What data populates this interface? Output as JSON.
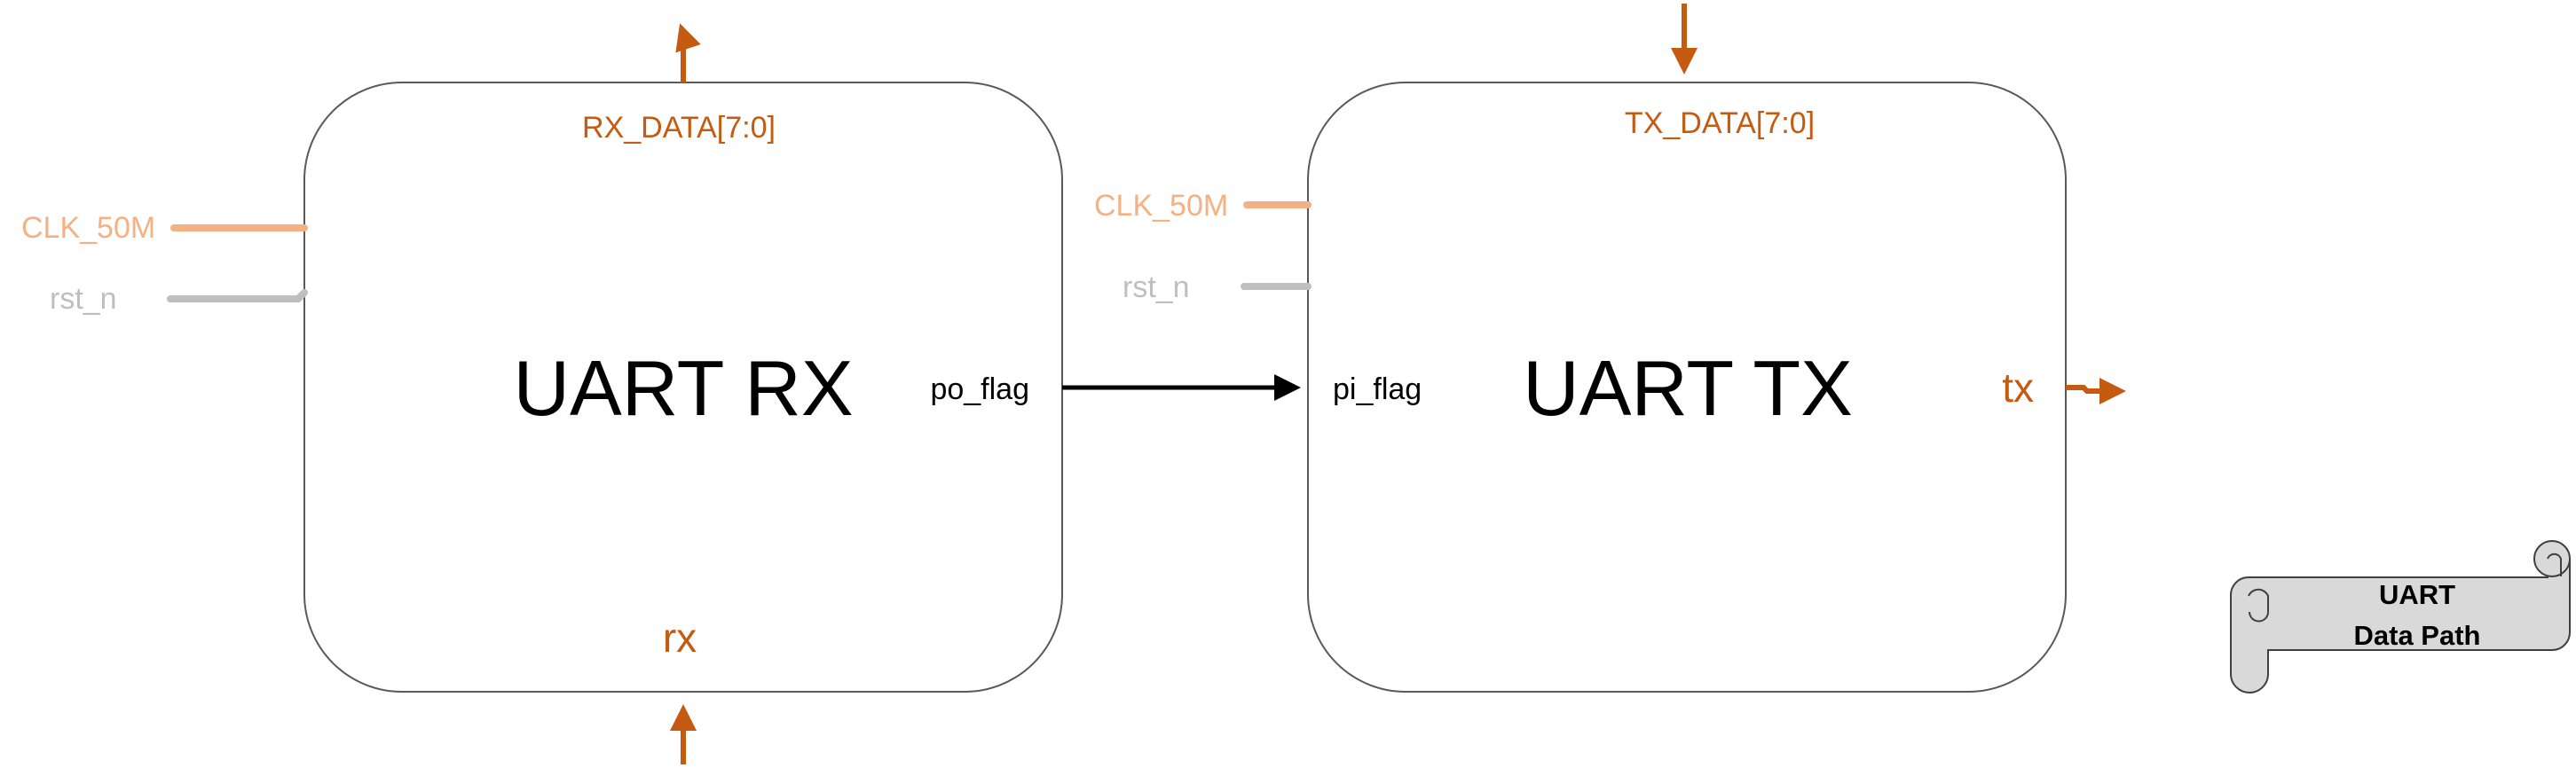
{
  "colors": {
    "signal": "#c55a11",
    "clock": "#f4b183",
    "reset": "#bfbfbf",
    "flag": "#000000",
    "block_border": "#595959",
    "scroll_fill": "#d9d9d9",
    "scroll_border": "#404040"
  },
  "blocks": {
    "rx": {
      "title": "UART RX",
      "data_port": "RX_DATA[7:0]",
      "clk_port": "CLK_50M",
      "rst_port": "rst_n",
      "flag_port": "po_flag",
      "serial_port": "rx"
    },
    "tx": {
      "title": "UART TX",
      "data_port": "TX_DATA[7:0]",
      "clk_port": "CLK_50M",
      "rst_port": "rst_n",
      "flag_port": "pi_flag",
      "serial_port": "tx"
    }
  },
  "scroll": {
    "line1": "UART",
    "line2": "Data Path"
  }
}
